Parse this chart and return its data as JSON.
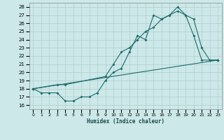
{
  "xlabel": "Humidex (Indice chaleur)",
  "bg_color": "#cce8e8",
  "grid_color": "#b0cccc",
  "line_color": "#1e6b6b",
  "xlim": [
    -0.5,
    23.5
  ],
  "ylim": [
    15.5,
    28.5
  ],
  "xticks": [
    0,
    1,
    2,
    3,
    4,
    5,
    6,
    7,
    8,
    9,
    10,
    11,
    12,
    13,
    14,
    15,
    16,
    17,
    18,
    19,
    20,
    21,
    22,
    23
  ],
  "yticks": [
    16,
    17,
    18,
    19,
    20,
    21,
    22,
    23,
    24,
    25,
    26,
    27,
    28
  ],
  "line1_x": [
    0,
    1,
    2,
    3,
    4,
    5,
    6,
    7,
    8,
    9,
    10,
    11,
    12,
    13,
    14,
    15,
    16,
    17,
    18,
    19,
    20,
    21,
    22,
    23
  ],
  "line1_y": [
    18,
    17.5,
    17.5,
    17.5,
    16.5,
    16.5,
    17,
    17,
    17.5,
    19,
    20,
    20.5,
    22.5,
    24.5,
    24,
    27,
    26.5,
    27,
    28,
    27,
    24.5,
    21.5,
    21.5,
    21.5
  ],
  "line2_x": [
    0,
    3,
    4,
    9,
    10,
    11,
    12,
    13,
    14,
    15,
    16,
    17,
    18,
    19,
    20,
    21,
    22,
    23
  ],
  "line2_y": [
    18,
    18.5,
    18.5,
    19.5,
    21,
    22.5,
    23,
    24,
    25,
    25.5,
    26.5,
    27,
    27.5,
    27,
    26.5,
    23,
    21.5,
    21.5
  ],
  "line3_x": [
    0,
    23
  ],
  "line3_y": [
    18,
    21.5
  ]
}
